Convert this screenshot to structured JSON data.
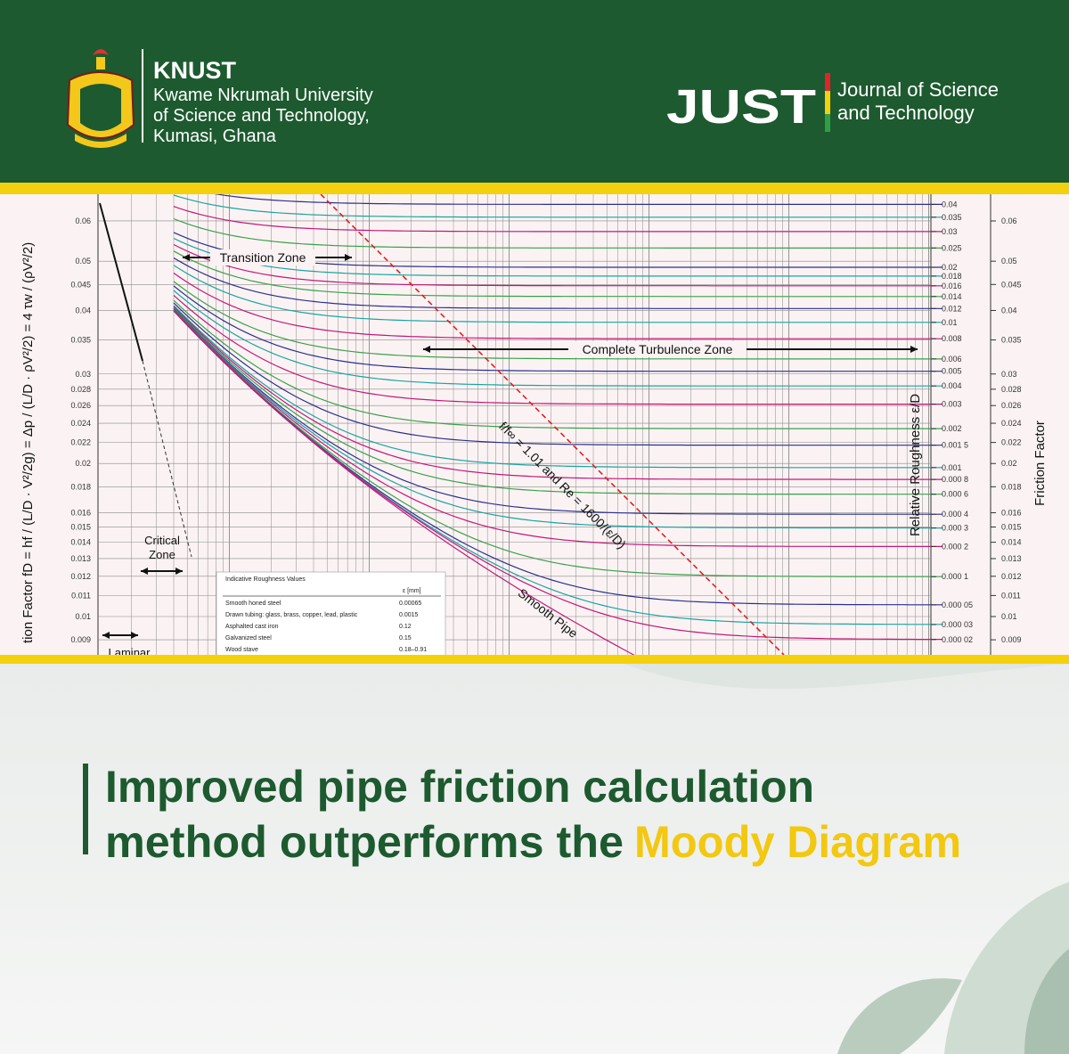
{
  "header": {
    "org_name": "KNUST",
    "org_lines": [
      "Kwame Nkrumah University",
      "of Science and Technology,",
      "Kumasi, Ghana"
    ],
    "journal_abbr": "JUST",
    "journal_lines": [
      "Journal of Science",
      "and Technology"
    ]
  },
  "diagram": {
    "y_axis_label": "tion Factor  fD = hf / (L/D · V²/2g) = Δp / (L/D · ρV²/2) = 4 τw / (ρV²/2)",
    "right_axis_label": "Friction Factor",
    "roughness_axis_label": "Relative Roughness ε/D",
    "friction_factor_ticks": [
      0.06,
      0.05,
      0.045,
      0.04,
      0.035,
      0.03,
      0.028,
      0.026,
      0.024,
      0.022,
      0.02,
      0.018,
      0.016,
      0.015,
      0.014,
      0.013,
      0.012,
      0.011,
      0.01,
      0.009
    ],
    "roughness_ticks": [
      "0.04",
      "0.035",
      "0.03",
      "0.025",
      "0.02",
      "0.018",
      "0.016",
      "0.014",
      "0.012",
      "0.01",
      "0.008",
      "0.006",
      "0.005",
      "0.004",
      "0.003",
      "0.002",
      "0.001 5",
      "0.001",
      "0.000 8",
      "0.000 6",
      "0.000 4",
      "0.000 3",
      "0.000 2",
      "0.000 1",
      "0.000 05",
      "0.000 03",
      "0.000 02"
    ],
    "transition_zone": "Transition Zone",
    "turbulence_zone": "Complete Turbulence Zone",
    "critical_zone": [
      "Critical",
      "Zone"
    ],
    "laminar": "Laminar",
    "smooth_pipe": "Smooth Pipe",
    "boundary_label": "f/f∞ = 1.01   and   Re = 1600/(ε/D)",
    "table": {
      "title": "Indicative Roughness Values",
      "column_header": "ε [mm]",
      "rows": [
        [
          "Smooth honed steel",
          "0.00065"
        ],
        [
          "Drawn tubing: glass, brass, copper, lead, plastic",
          "0.0015"
        ],
        [
          "Asphalted cast iron",
          "0.12"
        ],
        [
          "Galvanized steel",
          "0.15"
        ],
        [
          "Wood stave",
          "0.18–0.91"
        ]
      ]
    }
  },
  "headline": {
    "lines": [
      "Improved pipe friction calculation",
      "method outperforms the"
    ],
    "highlight": "Moody Diagram"
  }
}
